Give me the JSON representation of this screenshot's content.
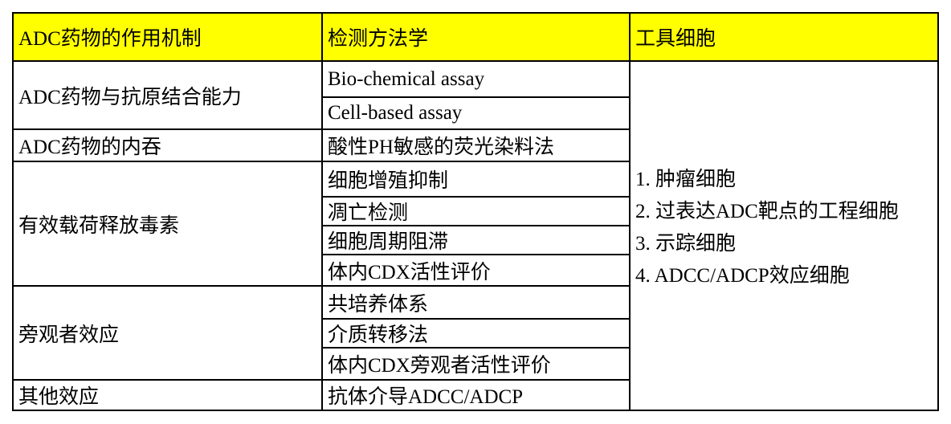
{
  "header": {
    "col1": "ADC药物的作用机制",
    "col2": "检测方法学",
    "col3": "工具细胞",
    "background": "#ffff00"
  },
  "mechanisms": [
    {
      "label": "ADC药物与抗原结合能力",
      "methods": [
        "Bio-chemical assay",
        "Cell-based assay"
      ]
    },
    {
      "label": "ADC药物的内吞",
      "methods": [
        "酸性PH敏感的荧光染料法"
      ]
    },
    {
      "label": "有效载荷释放毒素",
      "methods": [
        "细胞增殖抑制",
        "凋亡检测",
        "细胞周期阻滞",
        "体内CDX活性评价"
      ]
    },
    {
      "label": "旁观者效应",
      "methods": [
        "共培养体系",
        "介质转移法",
        "体内CDX旁观者活性评价"
      ]
    },
    {
      "label": "其他效应",
      "methods": [
        "抗体介导ADCC/ADCP"
      ]
    }
  ],
  "tool_cells": [
    "1. 肿瘤细胞",
    "2. 过表达ADC靶点的工程细胞",
    "3. 示踪细胞",
    "4. ADCC/ADCP效应细胞"
  ]
}
